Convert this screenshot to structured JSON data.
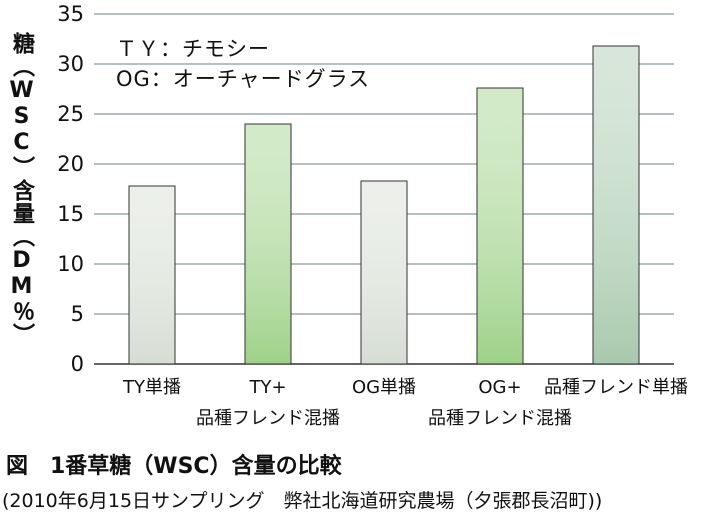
{
  "chart_data": {
    "type": "bar",
    "ylabel": "糖（WSC）含量（DM％）",
    "ylim": [
      0,
      35
    ],
    "yticks": [
      0,
      5,
      10,
      15,
      20,
      25,
      30,
      35
    ],
    "grid": true,
    "categories": [
      [
        "TY単播"
      ],
      [
        "TY+",
        "品種フレンド混播"
      ],
      [
        "OG単播"
      ],
      [
        "OG+",
        "品種フレンド混播"
      ],
      [
        "品種フレンド単播"
      ]
    ],
    "values": [
      17.8,
      24.0,
      18.3,
      27.6,
      31.8
    ],
    "bar_colors": [
      "#d6ddd3",
      "#9ed188",
      "#d6ddd3",
      "#9ed188",
      "#a8c9ad"
    ],
    "legend": [
      "ＴＹ：チモシー",
      "OG：オーチャードグラス"
    ]
  },
  "caption": "図　1番草糖（WSC）含量の比較",
  "source": "(2010年6月15日サンプリング　弊社北海道研究農場（夕張郡長沼町))"
}
